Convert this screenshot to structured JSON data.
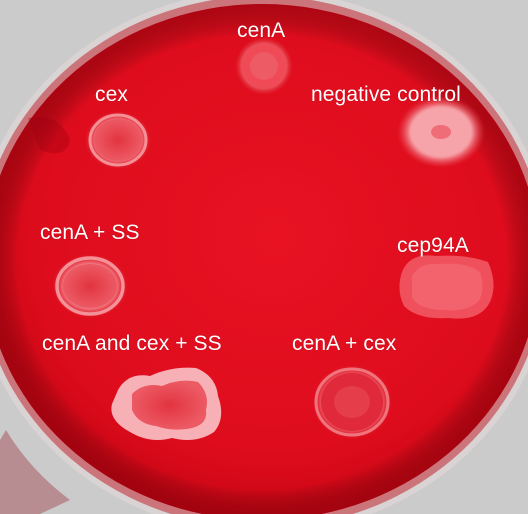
{
  "image": {
    "colors": {
      "background_bench": "#c9c9c9",
      "plate_rim": "#d8d2d2",
      "agar_base": "#e0101f",
      "agar_dark": "#b5000f",
      "colony_halo": "#f58b92",
      "colony_core": "#e2323f",
      "label_text": "#ffffff"
    }
  },
  "labels": {
    "cenA": "cenA",
    "cex": "cex",
    "negative_control": "negative control",
    "cenA_ss": "cenA  + SS",
    "cep94A": "cep94A",
    "cenA_and_cex_ss": "cenA and cex + SS",
    "cenA_cex": "cenA + cex"
  },
  "colonies": [
    {
      "name": "colony-cenA",
      "label_key": "cenA"
    },
    {
      "name": "colony-cex",
      "label_key": "cex"
    },
    {
      "name": "colony-negative-control",
      "label_key": "negative_control"
    },
    {
      "name": "colony-cenA-ss",
      "label_key": "cenA_ss"
    },
    {
      "name": "colony-cep94A",
      "label_key": "cep94A"
    },
    {
      "name": "colony-cenA-and-cex-ss",
      "label_key": "cenA_and_cex_ss"
    },
    {
      "name": "colony-cenA-cex",
      "label_key": "cenA_cex"
    }
  ]
}
